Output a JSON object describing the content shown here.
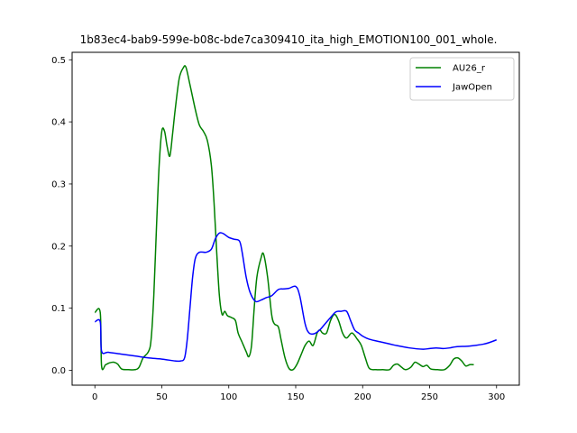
{
  "chart_data": {
    "type": "line",
    "title": "1b83ec4-bab9-599e-b08c-bde7ca309410_ita_high_EMOTION100_001_whole.",
    "xlabel": "",
    "ylabel": "",
    "xlim": [
      -17,
      317
    ],
    "ylim": [
      -0.024,
      0.512
    ],
    "xticks": [
      0,
      50,
      100,
      150,
      200,
      250,
      300
    ],
    "yticks": [
      0.0,
      0.1,
      0.2,
      0.3,
      0.4,
      0.5
    ],
    "ytick_labels": [
      "0.0",
      "0.1",
      "0.2",
      "0.3",
      "0.4",
      "0.5"
    ],
    "grid": false,
    "legend_position": "top-right",
    "series": [
      {
        "name": "AU26_r",
        "color": "#008000",
        "points": [
          [
            0,
            0.093
          ],
          [
            4,
            0.093
          ],
          [
            5,
            0.007
          ],
          [
            8,
            0.009
          ],
          [
            11,
            0.012
          ],
          [
            14,
            0.013
          ],
          [
            17,
            0.01
          ],
          [
            20,
            0.002
          ],
          [
            25,
            0.001
          ],
          [
            30,
            0.001
          ],
          [
            33,
            0.005
          ],
          [
            36,
            0.02
          ],
          [
            40,
            0.03
          ],
          [
            42,
            0.05
          ],
          [
            44,
            0.12
          ],
          [
            46,
            0.23
          ],
          [
            48,
            0.33
          ],
          [
            50,
            0.385
          ],
          [
            52,
            0.385
          ],
          [
            54,
            0.36
          ],
          [
            56,
            0.345
          ],
          [
            58,
            0.38
          ],
          [
            60,
            0.42
          ],
          [
            63,
            0.47
          ],
          [
            66,
            0.487
          ],
          [
            68,
            0.488
          ],
          [
            71,
            0.46
          ],
          [
            75,
            0.42
          ],
          [
            78,
            0.395
          ],
          [
            81,
            0.385
          ],
          [
            84,
            0.37
          ],
          [
            87,
            0.33
          ],
          [
            89,
            0.27
          ],
          [
            91,
            0.19
          ],
          [
            93,
            0.12
          ],
          [
            95,
            0.09
          ],
          [
            97,
            0.095
          ],
          [
            99,
            0.088
          ],
          [
            102,
            0.085
          ],
          [
            105,
            0.08
          ],
          [
            107,
            0.06
          ],
          [
            110,
            0.045
          ],
          [
            113,
            0.03
          ],
          [
            115,
            0.022
          ],
          [
            117,
            0.04
          ],
          [
            119,
            0.1
          ],
          [
            121,
            0.15
          ],
          [
            124,
            0.18
          ],
          [
            126,
            0.187
          ],
          [
            129,
            0.15
          ],
          [
            132,
            0.09
          ],
          [
            134,
            0.075
          ],
          [
            137,
            0.07
          ],
          [
            139,
            0.05
          ],
          [
            142,
            0.02
          ],
          [
            145,
            0.003
          ],
          [
            148,
            0.001
          ],
          [
            151,
            0.01
          ],
          [
            154,
            0.025
          ],
          [
            157,
            0.04
          ],
          [
            160,
            0.047
          ],
          [
            163,
            0.04
          ],
          [
            166,
            0.06
          ],
          [
            168,
            0.065
          ],
          [
            170,
            0.06
          ],
          [
            173,
            0.06
          ],
          [
            176,
            0.08
          ],
          [
            179,
            0.09
          ],
          [
            182,
            0.08
          ],
          [
            185,
            0.06
          ],
          [
            188,
            0.052
          ],
          [
            192,
            0.06
          ],
          [
            196,
            0.05
          ],
          [
            199,
            0.04
          ],
          [
            202,
            0.02
          ],
          [
            205,
            0.003
          ],
          [
            210,
            0.001
          ],
          [
            215,
            0.001
          ],
          [
            220,
            0.001
          ],
          [
            223,
            0.008
          ],
          [
            226,
            0.01
          ],
          [
            229,
            0.005
          ],
          [
            232,
            0.001
          ],
          [
            236,
            0.005
          ],
          [
            239,
            0.013
          ],
          [
            242,
            0.01
          ],
          [
            245,
            0.006
          ],
          [
            248,
            0.008
          ],
          [
            251,
            0.002
          ],
          [
            256,
            0.001
          ],
          [
            261,
            0.001
          ],
          [
            265,
            0.008
          ],
          [
            268,
            0.018
          ],
          [
            271,
            0.02
          ],
          [
            274,
            0.015
          ],
          [
            277,
            0.007
          ],
          [
            280,
            0.009
          ],
          [
            283,
            0.009
          ]
        ]
      },
      {
        "name": "JawOpen",
        "color": "#0000ff",
        "points": [
          [
            0,
            0.078
          ],
          [
            4,
            0.078
          ],
          [
            5,
            0.031
          ],
          [
            10,
            0.029
          ],
          [
            20,
            0.026
          ],
          [
            30,
            0.023
          ],
          [
            40,
            0.02
          ],
          [
            50,
            0.018
          ],
          [
            60,
            0.015
          ],
          [
            64,
            0.015
          ],
          [
            67,
            0.02
          ],
          [
            69,
            0.05
          ],
          [
            71,
            0.1
          ],
          [
            73,
            0.15
          ],
          [
            75,
            0.18
          ],
          [
            78,
            0.19
          ],
          [
            83,
            0.19
          ],
          [
            87,
            0.195
          ],
          [
            90,
            0.212
          ],
          [
            93,
            0.221
          ],
          [
            96,
            0.22
          ],
          [
            100,
            0.214
          ],
          [
            104,
            0.211
          ],
          [
            108,
            0.208
          ],
          [
            110,
            0.19
          ],
          [
            113,
            0.15
          ],
          [
            116,
            0.125
          ],
          [
            120,
            0.111
          ],
          [
            124,
            0.113
          ],
          [
            128,
            0.117
          ],
          [
            132,
            0.12
          ],
          [
            137,
            0.13
          ],
          [
            141,
            0.131
          ],
          [
            145,
            0.132
          ],
          [
            150,
            0.135
          ],
          [
            153,
            0.12
          ],
          [
            157,
            0.075
          ],
          [
            160,
            0.06
          ],
          [
            164,
            0.059
          ],
          [
            168,
            0.065
          ],
          [
            172,
            0.075
          ],
          [
            176,
            0.085
          ],
          [
            180,
            0.094
          ],
          [
            184,
            0.095
          ],
          [
            188,
            0.095
          ],
          [
            191,
            0.08
          ],
          [
            194,
            0.065
          ],
          [
            197,
            0.06
          ],
          [
            200,
            0.055
          ],
          [
            205,
            0.05
          ],
          [
            215,
            0.045
          ],
          [
            225,
            0.04
          ],
          [
            235,
            0.036
          ],
          [
            245,
            0.034
          ],
          [
            250,
            0.035
          ],
          [
            255,
            0.036
          ],
          [
            260,
            0.035
          ],
          [
            265,
            0.036
          ],
          [
            270,
            0.038
          ],
          [
            280,
            0.039
          ],
          [
            290,
            0.042
          ],
          [
            295,
            0.045
          ],
          [
            300,
            0.049
          ]
        ]
      }
    ]
  }
}
